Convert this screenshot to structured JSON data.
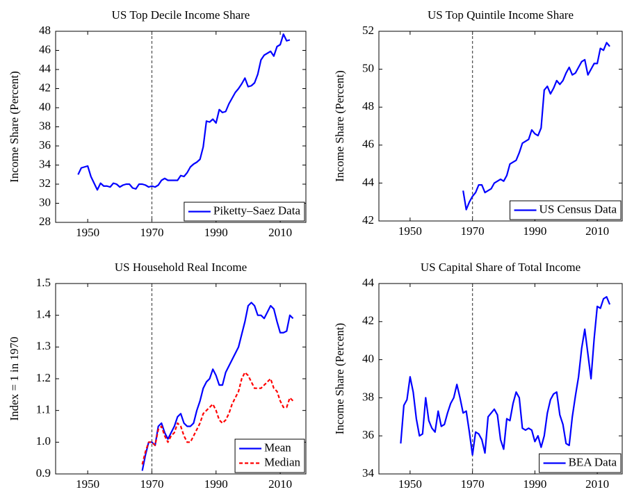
{
  "chart_data": [
    {
      "type": "line",
      "title": "US Top Decile Income Share",
      "ylabel": "Income Share (Percent)",
      "xlim": [
        1940,
        2018
      ],
      "xticks": [
        1950,
        1970,
        1990,
        2010
      ],
      "ylim": [
        28,
        48
      ],
      "yticks": [
        28,
        30,
        32,
        34,
        36,
        38,
        40,
        42,
        44,
        46,
        48
      ],
      "vline": 1970,
      "legend": "lower right",
      "x": [
        1947,
        1948,
        1949,
        1950,
        1951,
        1952,
        1953,
        1954,
        1955,
        1956,
        1957,
        1958,
        1959,
        1960,
        1961,
        1962,
        1963,
        1964,
        1965,
        1966,
        1967,
        1968,
        1969,
        1970,
        1971,
        1972,
        1973,
        1974,
        1975,
        1976,
        1977,
        1978,
        1979,
        1980,
        1981,
        1982,
        1983,
        1984,
        1985,
        1986,
        1987,
        1988,
        1989,
        1990,
        1991,
        1992,
        1993,
        1994,
        1995,
        1996,
        1997,
        1998,
        1999,
        2000,
        2001,
        2002,
        2003,
        2004,
        2005,
        2006,
        2007,
        2008,
        2009,
        2010,
        2011,
        2012,
        2013
      ],
      "series": [
        {
          "name": "Piketty–Saez Data",
          "color": "#0000ff",
          "linestyle": "solid",
          "values": [
            33.0,
            33.7,
            33.8,
            33.9,
            32.8,
            32.1,
            31.4,
            32.1,
            31.8,
            31.8,
            31.7,
            32.1,
            32.0,
            31.7,
            31.9,
            32.0,
            32.0,
            31.6,
            31.5,
            32.0,
            32.0,
            31.9,
            31.7,
            31.8,
            31.7,
            31.9,
            32.4,
            32.6,
            32.4,
            32.4,
            32.4,
            32.4,
            32.9,
            32.8,
            33.2,
            33.8,
            34.1,
            34.3,
            34.6,
            35.9,
            38.6,
            38.5,
            38.8,
            38.4,
            39.8,
            39.5,
            39.6,
            40.4,
            41.0,
            41.6,
            42.0,
            42.5,
            43.1,
            42.2,
            42.3,
            42.6,
            43.5,
            45.0,
            45.5,
            45.7,
            45.9,
            45.4,
            46.4,
            46.6,
            47.7,
            47.0,
            47.1
          ]
        }
      ]
    },
    {
      "type": "line",
      "title": "US Top Quintile Income Share",
      "ylabel": "Income Share (Percent)",
      "xlim": [
        1940,
        2018
      ],
      "xticks": [
        1950,
        1970,
        1990,
        2010
      ],
      "ylim": [
        42,
        52
      ],
      "yticks": [
        42,
        44,
        46,
        48,
        50,
        52
      ],
      "vline": 1970,
      "legend": "lower right",
      "x": [
        1967,
        1968,
        1969,
        1970,
        1971,
        1972,
        1973,
        1974,
        1975,
        1976,
        1977,
        1978,
        1979,
        1980,
        1981,
        1982,
        1983,
        1984,
        1985,
        1986,
        1987,
        1988,
        1989,
        1990,
        1991,
        1992,
        1993,
        1994,
        1995,
        1996,
        1997,
        1998,
        1999,
        2000,
        2001,
        2002,
        2003,
        2004,
        2005,
        2006,
        2007,
        2008,
        2009,
        2010,
        2011,
        2012,
        2013,
        2014
      ],
      "series": [
        {
          "name": "US Census Data",
          "color": "#0000ff",
          "linestyle": "solid",
          "values": [
            43.6,
            42.6,
            43.0,
            43.3,
            43.5,
            43.9,
            43.9,
            43.5,
            43.6,
            43.7,
            44.0,
            44.1,
            44.2,
            44.1,
            44.4,
            45.0,
            45.1,
            45.2,
            45.6,
            46.1,
            46.2,
            46.3,
            46.8,
            46.6,
            46.5,
            46.9,
            48.9,
            49.1,
            48.7,
            49.0,
            49.4,
            49.2,
            49.4,
            49.8,
            50.1,
            49.7,
            49.8,
            50.1,
            50.4,
            50.5,
            49.7,
            50.0,
            50.3,
            50.3,
            51.1,
            51.0,
            51.4,
            51.2
          ]
        }
      ]
    },
    {
      "type": "line",
      "title": "US Household Real Income",
      "ylabel": "Index = 1 in 1970",
      "xlim": [
        1940,
        2018
      ],
      "xticks": [
        1950,
        1970,
        1990,
        2010
      ],
      "ylim": [
        0.9,
        1.5
      ],
      "yticks": [
        0.9,
        {
          "value": 1,
          "label": "1.0"
        },
        1.1,
        1.2,
        1.3,
        1.4,
        1.5
      ],
      "vline": 1970,
      "legend": "lower right",
      "x": [
        1967,
        1968,
        1969,
        1970,
        1971,
        1972,
        1973,
        1974,
        1975,
        1976,
        1977,
        1978,
        1979,
        1980,
        1981,
        1982,
        1983,
        1984,
        1985,
        1986,
        1987,
        1988,
        1989,
        1990,
        1991,
        1992,
        1993,
        1994,
        1995,
        1996,
        1997,
        1998,
        1999,
        2000,
        2001,
        2002,
        2003,
        2004,
        2005,
        2006,
        2007,
        2008,
        2009,
        2010,
        2011,
        2012,
        2013,
        2014
      ],
      "series": [
        {
          "name": "Mean",
          "color": "#0000ff",
          "linestyle": "solid",
          "values": [
            0.91,
            0.96,
            1.0,
            1.0,
            0.99,
            1.05,
            1.06,
            1.03,
            1.01,
            1.03,
            1.05,
            1.08,
            1.09,
            1.06,
            1.05,
            1.05,
            1.06,
            1.1,
            1.13,
            1.17,
            1.19,
            1.2,
            1.23,
            1.21,
            1.18,
            1.18,
            1.22,
            1.24,
            1.26,
            1.28,
            1.3,
            1.34,
            1.38,
            1.43,
            1.44,
            1.43,
            1.4,
            1.4,
            1.39,
            1.41,
            1.43,
            1.42,
            1.38,
            1.345,
            1.345,
            1.35,
            1.4,
            1.39
          ]
        },
        {
          "name": "Median",
          "color": "#ff0000",
          "linestyle": "dashed",
          "values": [
            0.93,
            0.97,
            1.0,
            1.0,
            0.99,
            1.04,
            1.05,
            1.02,
            1.0,
            1.02,
            1.03,
            1.06,
            1.05,
            1.02,
            1.0,
            1.0,
            1.02,
            1.04,
            1.06,
            1.09,
            1.1,
            1.11,
            1.12,
            1.1,
            1.07,
            1.06,
            1.07,
            1.09,
            1.12,
            1.14,
            1.16,
            1.2,
            1.22,
            1.21,
            1.19,
            1.17,
            1.17,
            1.17,
            1.18,
            1.19,
            1.2,
            1.17,
            1.16,
            1.13,
            1.11,
            1.11,
            1.14,
            1.13
          ]
        }
      ]
    },
    {
      "type": "line",
      "title": "US Capital Share of Total Income",
      "ylabel": "Income Share (Percent)",
      "xlim": [
        1940,
        2018
      ],
      "xticks": [
        1950,
        1970,
        1990,
        2010
      ],
      "ylim": [
        34,
        44
      ],
      "yticks": [
        34,
        36,
        38,
        40,
        42,
        44
      ],
      "vline": 1970,
      "legend": "lower right",
      "x": [
        1947,
        1948,
        1949,
        1950,
        1951,
        1952,
        1953,
        1954,
        1955,
        1956,
        1957,
        1958,
        1959,
        1960,
        1961,
        1962,
        1963,
        1964,
        1965,
        1966,
        1967,
        1968,
        1969,
        1970,
        1971,
        1972,
        1973,
        1974,
        1975,
        1976,
        1977,
        1978,
        1979,
        1980,
        1981,
        1982,
        1983,
        1984,
        1985,
        1986,
        1987,
        1988,
        1989,
        1990,
        1991,
        1992,
        1993,
        1994,
        1995,
        1996,
        1997,
        1998,
        1999,
        2000,
        2001,
        2002,
        2003,
        2004,
        2005,
        2006,
        2007,
        2008,
        2009,
        2010,
        2011,
        2012,
        2013,
        2014
      ],
      "series": [
        {
          "name": "BEA Data",
          "color": "#0000ff",
          "linestyle": "solid",
          "values": [
            35.6,
            37.6,
            37.9,
            39.1,
            38.3,
            36.9,
            36.0,
            36.1,
            38.0,
            36.8,
            36.4,
            36.2,
            37.3,
            36.5,
            36.6,
            37.2,
            37.7,
            38.0,
            38.7,
            38.0,
            37.2,
            37.3,
            36.2,
            35.0,
            36.2,
            36.1,
            35.8,
            35.1,
            37.0,
            37.2,
            37.4,
            37.1,
            35.8,
            35.3,
            36.9,
            36.8,
            37.7,
            38.3,
            38.0,
            36.4,
            36.3,
            36.4,
            36.3,
            35.7,
            36.0,
            35.4,
            36.0,
            37.2,
            37.9,
            38.2,
            38.3,
            37.1,
            36.6,
            35.6,
            35.5,
            37.0,
            38.1,
            39.1,
            40.6,
            41.6,
            40.3,
            39.0,
            41.1,
            42.8,
            42.7,
            43.2,
            43.3,
            42.9
          ]
        }
      ]
    }
  ]
}
